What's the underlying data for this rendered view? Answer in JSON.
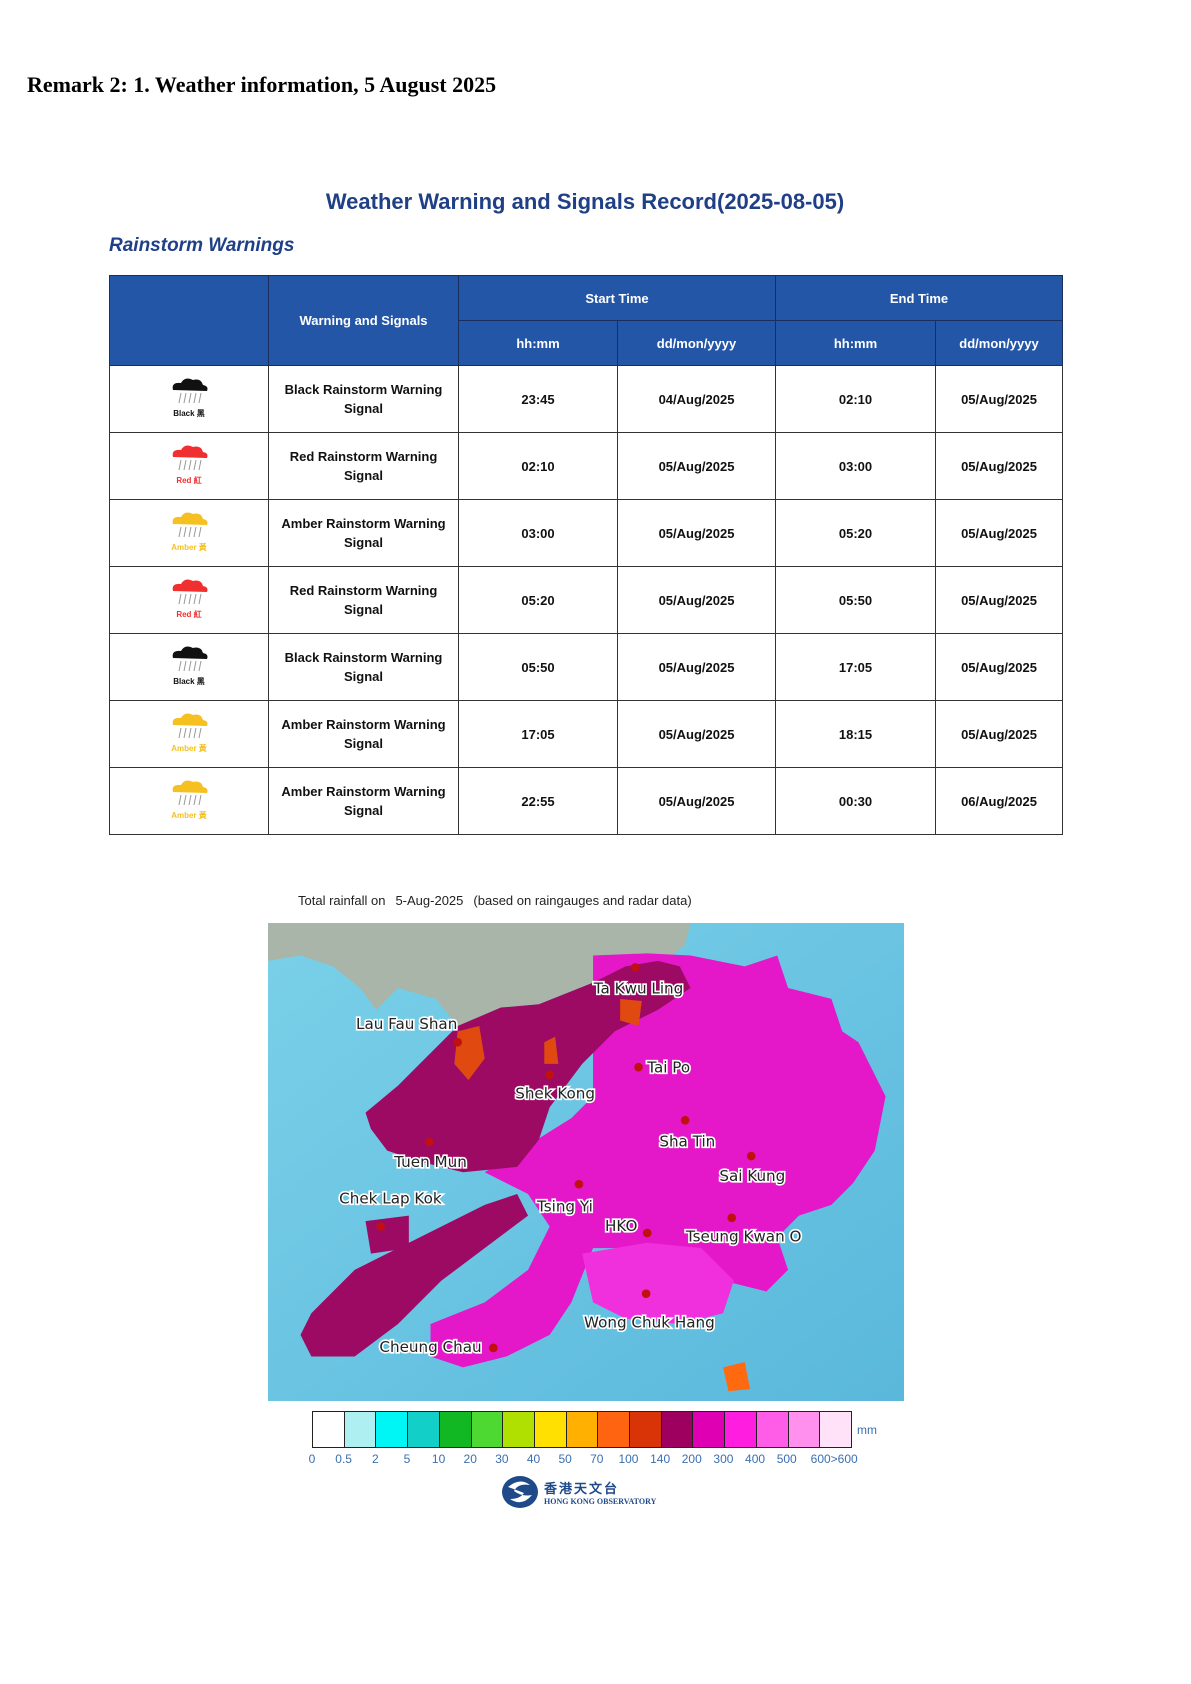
{
  "remark": "Remark 2: 1. Weather information, 5 August 2025",
  "title": "Weather Warning and Signals Record(2025-08-05)",
  "subtitle": "Rainstorm Warnings",
  "table": {
    "headers": {
      "warning": "Warning and Signals",
      "start": "Start Time",
      "end": "End Time",
      "time": "hh:mm",
      "date": "dd/mon/yyyy"
    },
    "rows": [
      {
        "level": "black",
        "icon_label": "Black 黑",
        "signal": "Black Rainstorm Warning Signal",
        "start_time": "23:45",
        "start_date": "04/Aug/2025",
        "end_time": "02:10",
        "end_date": "05/Aug/2025"
      },
      {
        "level": "red",
        "icon_label": "Red 紅",
        "signal": "Red Rainstorm Warning Signal",
        "start_time": "02:10",
        "start_date": "05/Aug/2025",
        "end_time": "03:00",
        "end_date": "05/Aug/2025"
      },
      {
        "level": "amber",
        "icon_label": "Amber 黃",
        "signal": "Amber Rainstorm Warning Signal",
        "start_time": "03:00",
        "start_date": "05/Aug/2025",
        "end_time": "05:20",
        "end_date": "05/Aug/2025"
      },
      {
        "level": "red",
        "icon_label": "Red 紅",
        "signal": "Red Rainstorm Warning Signal",
        "start_time": "05:20",
        "start_date": "05/Aug/2025",
        "end_time": "05:50",
        "end_date": "05/Aug/2025"
      },
      {
        "level": "black",
        "icon_label": "Black 黑",
        "signal": "Black Rainstorm Warning Signal",
        "start_time": "05:50",
        "start_date": "05/Aug/2025",
        "end_time": "17:05",
        "end_date": "05/Aug/2025"
      },
      {
        "level": "amber",
        "icon_label": "Amber 黃",
        "signal": "Amber Rainstorm Warning Signal",
        "start_time": "17:05",
        "start_date": "05/Aug/2025",
        "end_time": "18:15",
        "end_date": "05/Aug/2025"
      },
      {
        "level": "amber",
        "icon_label": "Amber 黃",
        "signal": "Amber Rainstorm Warning Signal",
        "start_time": "22:55",
        "start_date": "05/Aug/2025",
        "end_time": "00:30",
        "end_date": "06/Aug/2025"
      }
    ],
    "level_colors": {
      "black": "#111111",
      "red": "#f03030",
      "amber": "#f5c020"
    }
  },
  "rainfall_map": {
    "caption_prefix": "Total rainfall on",
    "date": "5-Aug-2025",
    "caption_note": "(based on raingauges and radar data)",
    "stations": [
      "Ta Kwu Ling",
      "Lau Fau Shan",
      "Tai Po",
      "Shek Kong",
      "Sha Tin",
      "Tuen Mun",
      "Sai Kung",
      "Chek Lap Kok",
      "Tsing Yi",
      "HKO",
      "Tseung Kwan O",
      "Wong Chuk Hang",
      "Cheung Chau"
    ],
    "legend": {
      "unit": "mm",
      "labels": [
        "0",
        "0.5",
        "2",
        "5",
        "10",
        "20",
        "30",
        "40",
        "50",
        "70",
        "100",
        "140",
        "200",
        "300",
        "400",
        "500",
        "600>600"
      ],
      "colors": [
        "#ffffff",
        "#aef0f2",
        "#00f5f5",
        "#12d0c8",
        "#12b824",
        "#4ed832",
        "#b0e002",
        "#ffe000",
        "#ffb000",
        "#ff6410",
        "#d83408",
        "#9e0060",
        "#e000b4",
        "#ff1ee0",
        "#ff5ce8",
        "#ff90ee",
        "#ffe2f8"
      ]
    }
  },
  "logo": {
    "zh": "香港天文台",
    "en": "HONG KONG OBSERVATORY"
  }
}
